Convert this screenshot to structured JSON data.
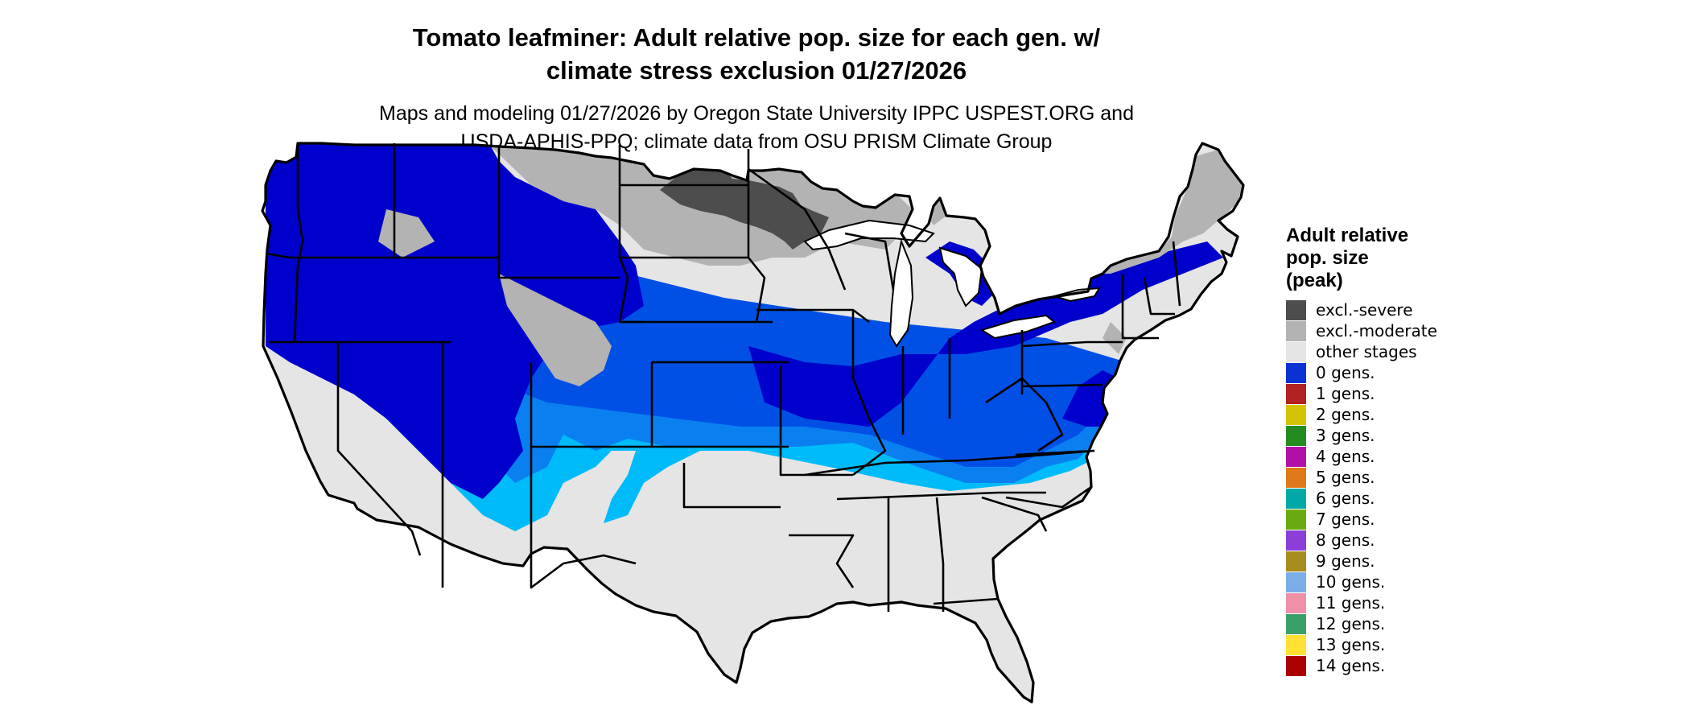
{
  "title": {
    "line1": "Tomato leafminer: Adult relative pop. size for each gen. w/",
    "line2": "climate stress exclusion 01/27/2026"
  },
  "subtitle": {
    "line1": "Maps and modeling 01/27/2026 by Oregon State University IPPC USPEST.ORG and",
    "line2": "USDA-APHIS-PPQ; climate data from OSU PRISM Climate Group"
  },
  "legend": {
    "title_lines": [
      "Adult relative",
      "pop. size",
      "(peak)"
    ],
    "items": [
      {
        "label": "excl.-severe",
        "color": "#4d4d4d"
      },
      {
        "label": "excl.-moderate",
        "color": "#b3b3b3"
      },
      {
        "label": "other stages",
        "color": "#e5e5e5"
      },
      {
        "label": "0 gens.",
        "color": "#0a32d2"
      },
      {
        "label": "1 gens.",
        "color": "#b22222"
      },
      {
        "label": "2 gens.",
        "color": "#d4c300"
      },
      {
        "label": "3 gens.",
        "color": "#228b22"
      },
      {
        "label": "4 gens.",
        "color": "#b00fa8"
      },
      {
        "label": "5 gens.",
        "color": "#e0781a"
      },
      {
        "label": "6 gens.",
        "color": "#00a8a8"
      },
      {
        "label": "7 gens.",
        "color": "#6aaa10"
      },
      {
        "label": "8 gens.",
        "color": "#8b3fd8"
      },
      {
        "label": "9 gens.",
        "color": "#a68c1e"
      },
      {
        "label": "10 gens.",
        "color": "#7aaee8"
      },
      {
        "label": "11 gens.",
        "color": "#f090a8"
      },
      {
        "label": "12 gens.",
        "color": "#3aa06a"
      },
      {
        "label": "13 gens.",
        "color": "#ffe033"
      },
      {
        "label": "14 gens.",
        "color": "#aa0000"
      }
    ]
  },
  "map": {
    "colors": {
      "severe": "#4d4d4d",
      "moderate": "#b3b3b3",
      "other": "#e5e5e5",
      "dark_blue": "#0000cc",
      "mid_blue": "#0050e6",
      "light_blue": "#0a80f0",
      "cyan": "#00bbf9"
    }
  }
}
